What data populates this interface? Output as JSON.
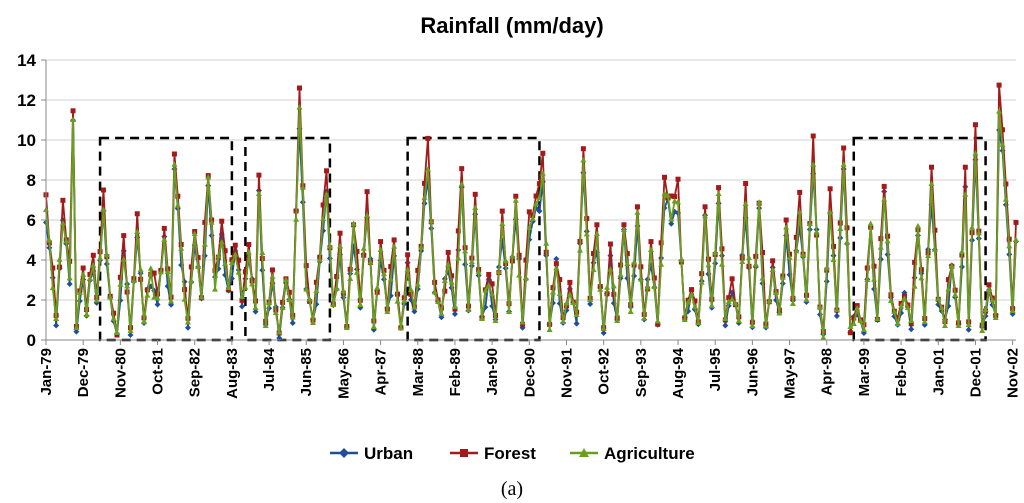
{
  "chart_data": {
    "type": "line",
    "title": "Rainfall (mm/day)",
    "caption": "(a)",
    "xlabel": "",
    "ylabel": "",
    "ylim": [
      0,
      14
    ],
    "yticks": [
      0,
      2,
      4,
      6,
      8,
      10,
      12,
      14
    ],
    "xlim_months": [
      0,
      287
    ],
    "x_tick_labels": [
      {
        "label": "Jan-79",
        "month": 0
      },
      {
        "label": "Dec-79",
        "month": 11
      },
      {
        "label": "Nov-80",
        "month": 22
      },
      {
        "label": "Oct-81",
        "month": 33
      },
      {
        "label": "Sep-82",
        "month": 44
      },
      {
        "label": "Aug-83",
        "month": 55
      },
      {
        "label": "Jul-84",
        "month": 66
      },
      {
        "label": "Jun-85",
        "month": 77
      },
      {
        "label": "May-86",
        "month": 88
      },
      {
        "label": "Apr-87",
        "month": 99
      },
      {
        "label": "Mar-88",
        "month": 110
      },
      {
        "label": "Feb-89",
        "month": 121
      },
      {
        "label": "Jan-90",
        "month": 132
      },
      {
        "label": "Dec-90",
        "month": 143
      },
      {
        "label": "Nov-91",
        "month": 154
      },
      {
        "label": "Oct-92",
        "month": 165
      },
      {
        "label": "Sep-93",
        "month": 176
      },
      {
        "label": "Aug-94",
        "month": 187
      },
      {
        "label": "Jul-95",
        "month": 198
      },
      {
        "label": "Jun-96",
        "month": 209
      },
      {
        "label": "May-97",
        "month": 220
      },
      {
        "label": "Apr-98",
        "month": 231
      },
      {
        "label": "Mar-99",
        "month": 242
      },
      {
        "label": "Feb-00",
        "month": 253
      },
      {
        "label": "Jan-01",
        "month": 264
      },
      {
        "label": "Dec-01",
        "month": 275
      },
      {
        "label": "Nov-02",
        "month": 286
      }
    ],
    "highlight_periods": [
      {
        "start_month": 16,
        "end_month": 55
      },
      {
        "start_month": 59,
        "end_month": 84
      },
      {
        "start_month": 107,
        "end_month": 146
      },
      {
        "start_month": 239,
        "end_month": 278
      }
    ],
    "anchors": [
      [
        0,
        6.5
      ],
      [
        3,
        1.0
      ],
      [
        5,
        6.3
      ],
      [
        7,
        3.2
      ],
      [
        8,
        11.0
      ],
      [
        9,
        0.6
      ],
      [
        11,
        3.5
      ],
      [
        12,
        1.2
      ],
      [
        14,
        4.2
      ],
      [
        15,
        1.9
      ],
      [
        17,
        6.5
      ],
      [
        19,
        2.0
      ],
      [
        21,
        0.3
      ],
      [
        23,
        4.5
      ],
      [
        25,
        0.5
      ],
      [
        27,
        5.4
      ],
      [
        29,
        1.0
      ],
      [
        31,
        3.2
      ],
      [
        33,
        2.0
      ],
      [
        35,
        5.0
      ],
      [
        37,
        1.8
      ],
      [
        38,
        9.0
      ],
      [
        40,
        4.2
      ],
      [
        42,
        0.8
      ],
      [
        44,
        5.3
      ],
      [
        46,
        2.0
      ],
      [
        48,
        8.0
      ],
      [
        50,
        3.0
      ],
      [
        52,
        5.0
      ],
      [
        54,
        2.6
      ],
      [
        56,
        4.5
      ],
      [
        58,
        2.0
      ],
      [
        60,
        4.2
      ],
      [
        62,
        1.6
      ],
      [
        63,
        7.3
      ],
      [
        65,
        0.8
      ],
      [
        67,
        2.8
      ],
      [
        69,
        0.3
      ],
      [
        71,
        3.0
      ],
      [
        73,
        1.0
      ],
      [
        75,
        11.5
      ],
      [
        77,
        3.0
      ],
      [
        79,
        0.9
      ],
      [
        81,
        4.0
      ],
      [
        83,
        7.5
      ],
      [
        85,
        1.6
      ],
      [
        87,
        4.5
      ],
      [
        89,
        0.6
      ],
      [
        91,
        5.5
      ],
      [
        93,
        1.7
      ],
      [
        95,
        6.7
      ],
      [
        97,
        0.7
      ],
      [
        99,
        4.5
      ],
      [
        101,
        1.5
      ],
      [
        103,
        4.3
      ],
      [
        105,
        0.5
      ],
      [
        107,
        3.5
      ],
      [
        109,
        1.5
      ],
      [
        111,
        4.5
      ],
      [
        113,
        9.0
      ],
      [
        115,
        2.5
      ],
      [
        117,
        1.3
      ],
      [
        119,
        4.0
      ],
      [
        121,
        1.5
      ],
      [
        123,
        7.6
      ],
      [
        125,
        1.5
      ],
      [
        127,
        6.3
      ],
      [
        129,
        1.0
      ],
      [
        131,
        3.2
      ],
      [
        133,
        1.0
      ],
      [
        135,
        5.8
      ],
      [
        137,
        1.5
      ],
      [
        139,
        6.6
      ],
      [
        141,
        0.8
      ],
      [
        143,
        5.6
      ],
      [
        145,
        6.5
      ],
      [
        147,
        8.2
      ],
      [
        149,
        0.7
      ],
      [
        151,
        3.7
      ],
      [
        153,
        0.9
      ],
      [
        155,
        2.5
      ],
      [
        157,
        1.1
      ],
      [
        159,
        8.8
      ],
      [
        161,
        2.0
      ],
      [
        163,
        5.0
      ],
      [
        165,
        0.5
      ],
      [
        167,
        4.0
      ],
      [
        169,
        1.0
      ],
      [
        171,
        5.5
      ],
      [
        173,
        1.5
      ],
      [
        175,
        6.0
      ],
      [
        177,
        1.0
      ],
      [
        179,
        4.5
      ],
      [
        181,
        0.8
      ],
      [
        183,
        7.2
      ],
      [
        185,
        6.5
      ],
      [
        187,
        7.0
      ],
      [
        189,
        1.0
      ],
      [
        191,
        2.5
      ],
      [
        193,
        0.7
      ],
      [
        195,
        6.0
      ],
      [
        197,
        1.7
      ],
      [
        199,
        7.0
      ],
      [
        201,
        1.0
      ],
      [
        203,
        2.5
      ],
      [
        205,
        1.0
      ],
      [
        207,
        6.8
      ],
      [
        209,
        0.8
      ],
      [
        211,
        6.5
      ],
      [
        213,
        0.6
      ],
      [
        215,
        3.5
      ],
      [
        217,
        1.2
      ],
      [
        219,
        5.5
      ],
      [
        221,
        2.0
      ],
      [
        223,
        6.5
      ],
      [
        225,
        2.0
      ],
      [
        227,
        9.0
      ],
      [
        229,
        1.5
      ],
      [
        230,
        0.3
      ],
      [
        232,
        6.5
      ],
      [
        234,
        1.5
      ],
      [
        236,
        9.0
      ],
      [
        238,
        0.5
      ],
      [
        240,
        1.5
      ],
      [
        242,
        0.5
      ],
      [
        244,
        5.5
      ],
      [
        246,
        1.0
      ],
      [
        248,
        7.5
      ],
      [
        250,
        2.0
      ],
      [
        252,
        0.8
      ],
      [
        254,
        2.3
      ],
      [
        256,
        0.8
      ],
      [
        258,
        5.5
      ],
      [
        260,
        0.9
      ],
      [
        262,
        7.5
      ],
      [
        264,
        2.0
      ],
      [
        266,
        0.9
      ],
      [
        268,
        3.8
      ],
      [
        270,
        0.7
      ],
      [
        272,
        7.5
      ],
      [
        273,
        0.7
      ],
      [
        275,
        9.8
      ],
      [
        277,
        0.5
      ],
      [
        279,
        2.5
      ],
      [
        281,
        1.2
      ],
      [
        282,
        11.3
      ],
      [
        284,
        7.5
      ],
      [
        286,
        1.5
      ],
      [
        287,
        5.0
      ]
    ],
    "series": [
      {
        "name": "Urban",
        "color": "#1f4e9c",
        "marker": "diamond",
        "offset": [
          -0.5,
          0.3,
          0.7,
          -0.9,
          0.2,
          0.0,
          0.5,
          -0.4,
          0.9,
          -0.6,
          0.0
        ],
        "scale": 0.95
      },
      {
        "name": "Forest",
        "color": "#a31a1a",
        "marker": "square",
        "offset": [
          0.4,
          -0.3,
          0.9,
          0.6,
          -0.5,
          0.3,
          -0.2,
          0.8,
          -0.7,
          0.1
        ],
        "scale": 1.08
      },
      {
        "name": "Agriculture",
        "color": "#6a9e1f",
        "marker": "triangle",
        "offset": [
          0.0,
          0.5,
          -0.4,
          0.2,
          0.6,
          -0.8,
          0.3,
          -0.2,
          0.0
        ],
        "scale": 1.0
      }
    ],
    "legend": {
      "placement": "bottom-center",
      "entries": [
        "Urban",
        "Forest",
        "Agriculture"
      ]
    }
  }
}
